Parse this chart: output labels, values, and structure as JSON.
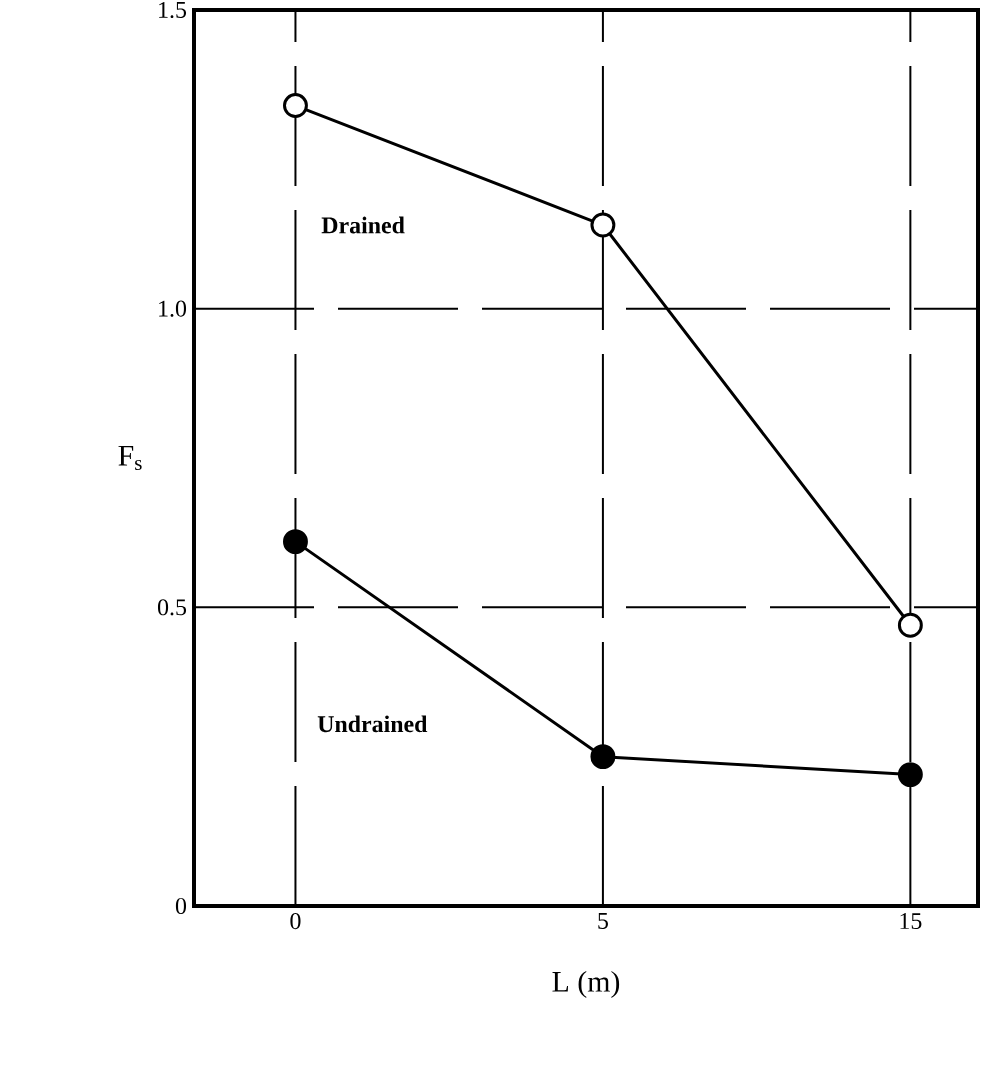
{
  "chart_data": {
    "type": "line",
    "xlabel": "L (m)",
    "ylabel": "F$_{s}$",
    "categories": [
      "0",
      "5",
      "15"
    ],
    "series": [
      {
        "name": "Drained",
        "color": "#000000",
        "colors": [
          "#ffffff",
          "#ffffff",
          "#ffffff"
        ],
        "values": [
          1.34,
          1.14,
          0.47
        ]
      },
      {
        "name": "Undrained",
        "color": "#000000",
        "values": [
          0.61,
          0.25,
          0.22
        ]
      }
    ],
    "ylim": [
      0,
      1.5
    ],
    "yticks": [
      0,
      0.5,
      {
        "value": 1.0,
        "label": "1.0"
      },
      1.5
    ],
    "grid": true,
    "marker": "circle",
    "line_style": "solid",
    "legend": false
  }
}
